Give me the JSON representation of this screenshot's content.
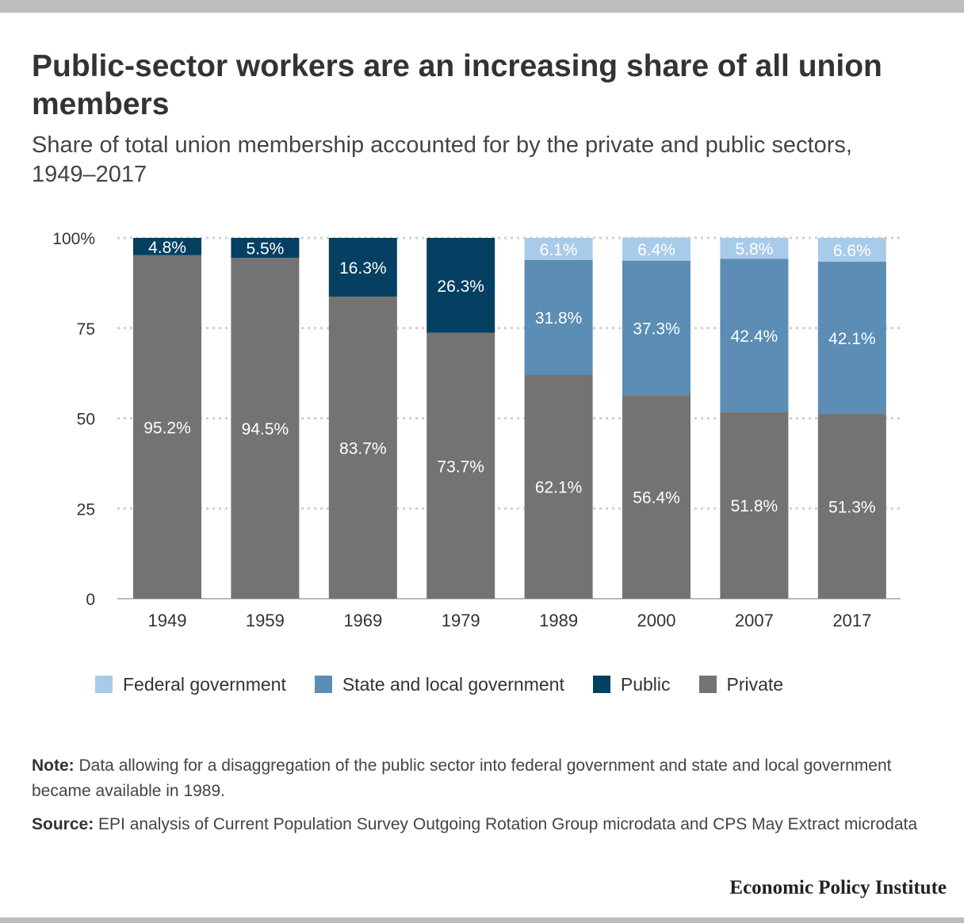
{
  "header": {
    "title": "Public-sector workers are an increasing share of all union members",
    "subtitle": "Share of total union membership accounted for by the private and public sectors, 1949–2017"
  },
  "chart_data": {
    "type": "bar",
    "stacked": true,
    "categories": [
      "1949",
      "1959",
      "1969",
      "1979",
      "1989",
      "2000",
      "2007",
      "2017"
    ],
    "series": [
      {
        "name": "Private",
        "color": "#737373",
        "label_color": "#ffffff",
        "values": [
          95.2,
          94.5,
          83.7,
          73.7,
          62.1,
          56.4,
          51.8,
          51.3
        ],
        "labels": [
          "95.2%",
          "94.5%",
          "83.7%",
          "73.7%",
          "62.1%",
          "56.4%",
          "51.8%",
          "51.3%"
        ]
      },
      {
        "name": "Public",
        "color": "#053f61",
        "label_color": "#ffffff",
        "values": [
          4.8,
          5.5,
          16.3,
          26.3,
          null,
          null,
          null,
          null
        ],
        "labels": [
          "4.8%",
          "5.5%",
          "16.3%",
          "26.3%",
          "",
          "",
          "",
          ""
        ]
      },
      {
        "name": "State and local government",
        "color": "#5b8db5",
        "label_color": "#ffffff",
        "values": [
          null,
          null,
          null,
          null,
          31.8,
          37.3,
          42.4,
          42.1
        ],
        "labels": [
          "",
          "",
          "",
          "",
          "31.8%",
          "37.3%",
          "42.4%",
          "42.1%"
        ]
      },
      {
        "name": "Federal government",
        "color": "#a9cbea",
        "label_color": "#ffffff",
        "values": [
          null,
          null,
          null,
          null,
          6.1,
          6.4,
          5.8,
          6.6
        ],
        "labels": [
          "",
          "",
          "",
          "",
          "6.1%",
          "6.4%",
          "5.8%",
          "6.6%"
        ]
      }
    ],
    "y_ticks": [
      {
        "value": 0,
        "label": "0"
      },
      {
        "value": 25,
        "label": "25"
      },
      {
        "value": 50,
        "label": "50"
      },
      {
        "value": 75,
        "label": "75"
      },
      {
        "value": 100,
        "label": "100%"
      }
    ],
    "ylim": [
      0,
      100
    ],
    "grid": "dotted horizontal",
    "legend_position": "bottom",
    "legend_order": [
      "Federal government",
      "State and local government",
      "Public",
      "Private"
    ]
  },
  "notes": {
    "note_label": "Note:",
    "note_text": " Data allowing for a disaggregation of the public sector into federal government and state and local government became available in 1989.",
    "source_label": "Source:",
    "source_text": " EPI analysis of Current Population Survey Outgoing Rotation Group microdata and CPS May Extract microdata"
  },
  "brand": "Economic Policy Institute"
}
